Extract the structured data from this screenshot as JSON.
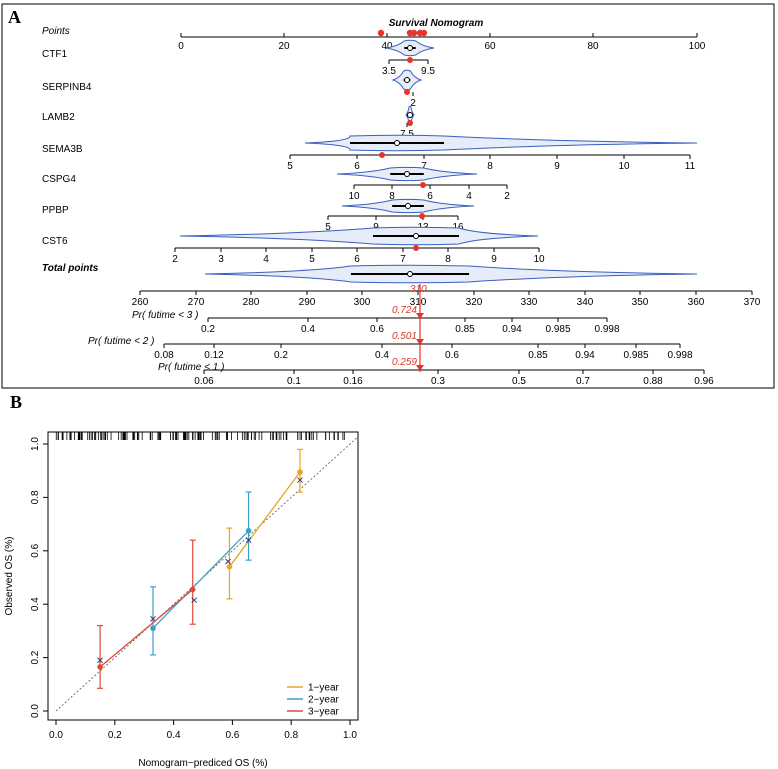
{
  "panels": {
    "a": {
      "letter": "A",
      "title": "Survival Nomogram",
      "rows": [
        {
          "label": "Points",
          "style": "italic",
          "ticks": [
            {
              "v": 0,
              "t": "0"
            },
            {
              "v": 20,
              "t": "20"
            },
            {
              "v": 40,
              "t": "40"
            },
            {
              "v": 60,
              "t": "60"
            },
            {
              "v": 80,
              "t": "80"
            },
            {
              "v": 100,
              "t": "100"
            }
          ]
        },
        {
          "label": "CTF1",
          "ticks": [
            {
              "v": 3.5,
              "t": "3.5"
            },
            {
              "v": 9.5,
              "t": "9.5"
            }
          ]
        },
        {
          "label": "SERPINB4",
          "ticks": [
            {
              "v": 2,
              "t": "2"
            }
          ]
        },
        {
          "label": "LAMB2",
          "ticks": [
            {
              "v": 7.5,
              "t": "7.5"
            }
          ]
        },
        {
          "label": "SEMA3B",
          "ticks": [
            {
              "v": 5,
              "t": "5"
            },
            {
              "v": 6,
              "t": "6"
            },
            {
              "v": 7,
              "t": "7"
            },
            {
              "v": 8,
              "t": "8"
            },
            {
              "v": 9,
              "t": "9"
            },
            {
              "v": 10,
              "t": "10"
            },
            {
              "v": 11,
              "t": "11"
            }
          ]
        },
        {
          "label": "CSPG4",
          "ticks": [
            {
              "v": 10,
              "t": "10"
            },
            {
              "v": 8,
              "t": "8"
            },
            {
              "v": 6,
              "t": "6"
            },
            {
              "v": 4,
              "t": "4"
            },
            {
              "v": 2,
              "t": "2"
            }
          ]
        },
        {
          "label": "PPBP",
          "ticks": [
            {
              "v": 5,
              "t": "5"
            },
            {
              "v": 9,
              "t": "9"
            },
            {
              "v": 13,
              "t": "13"
            },
            {
              "v": 16,
              "t": "16"
            }
          ]
        },
        {
          "label": "CST6",
          "ticks": [
            {
              "v": 2,
              "t": "2"
            },
            {
              "v": 3,
              "t": "3"
            },
            {
              "v": 4,
              "t": "4"
            },
            {
              "v": 5,
              "t": "5"
            },
            {
              "v": 6,
              "t": "6"
            },
            {
              "v": 7,
              "t": "7"
            },
            {
              "v": 8,
              "t": "8"
            },
            {
              "v": 9,
              "t": "9"
            },
            {
              "v": 10,
              "t": "10"
            }
          ]
        },
        {
          "label": "Total points",
          "style": "bold-italic",
          "ticks": [
            {
              "v": 260,
              "t": "260"
            },
            {
              "v": 270,
              "t": "270"
            },
            {
              "v": 280,
              "t": "280"
            },
            {
              "v": 290,
              "t": "290"
            },
            {
              "v": 300,
              "t": "300"
            },
            {
              "v": 310,
              "t": "310"
            },
            {
              "v": 320,
              "t": "320"
            },
            {
              "v": 330,
              "t": "330"
            },
            {
              "v": 340,
              "t": "340"
            },
            {
              "v": 350,
              "t": "350"
            },
            {
              "v": 360,
              "t": "360"
            },
            {
              "v": 370,
              "t": "370"
            }
          ]
        },
        {
          "label": "Pr( futime < 3 )",
          "style": "italic",
          "ticks": [
            {
              "v": 0.2,
              "t": "0.2"
            },
            {
              "v": 0.4,
              "t": "0.4"
            },
            {
              "v": 0.6,
              "t": "0.6"
            },
            {
              "v": 0.85,
              "t": "0.85"
            },
            {
              "v": 0.94,
              "t": "0.94"
            },
            {
              "v": 0.985,
              "t": "0.985"
            },
            {
              "v": 0.998,
              "t": "0.998"
            }
          ]
        },
        {
          "label": "Pr( futime < 2 )",
          "style": "italic",
          "ticks": [
            {
              "v": 0.08,
              "t": "0.08"
            },
            {
              "v": 0.12,
              "t": "0.12"
            },
            {
              "v": 0.2,
              "t": "0.2"
            },
            {
              "v": 0.4,
              "t": "0.4"
            },
            {
              "v": 0.6,
              "t": "0.6"
            },
            {
              "v": 0.85,
              "t": "0.85"
            },
            {
              "v": 0.94,
              "t": "0.94"
            },
            {
              "v": 0.985,
              "t": "0.985"
            },
            {
              "v": 0.998,
              "t": "0.998"
            }
          ]
        },
        {
          "label": "Pr( futime < 1 )",
          "style": "italic",
          "ticks": [
            {
              "v": 0.06,
              "t": "0.06"
            },
            {
              "v": 0.1,
              "t": "0.1"
            },
            {
              "v": 0.16,
              "t": "0.16"
            },
            {
              "v": 0.3,
              "t": "0.3"
            },
            {
              "v": 0.5,
              "t": "0.5"
            },
            {
              "v": 0.7,
              "t": "0.7"
            },
            {
              "v": 0.88,
              "t": "0.88"
            },
            {
              "v": 0.96,
              "t": "0.96"
            }
          ]
        }
      ],
      "total_points_marker": "310",
      "predicted": [
        {
          "row": "Pr( futime < 3 )",
          "value": "0.724"
        },
        {
          "row": "Pr( futime < 2 )",
          "value": "0.501"
        },
        {
          "row": "Pr( futime < 1 )",
          "value": "0.259"
        }
      ],
      "colors": {
        "marker": "#e8322b",
        "violin_stroke": "#3a5fbf",
        "violin_fill": "#e6ecf8",
        "pred_arrow": "#e8322b"
      }
    },
    "b": {
      "letter": "B",
      "xlabel": "Nomogram−prediced OS (%)",
      "ylabel": "Observed OS (%)",
      "xticks": [
        "0.0",
        "0.2",
        "0.4",
        "0.6",
        "0.8",
        "1.0"
      ],
      "yticks": [
        "0.0",
        "0.2",
        "0.4",
        "0.6",
        "0.8",
        "1.0"
      ],
      "legend": [
        {
          "name": "1−year",
          "color": "#e7a623"
        },
        {
          "name": "2−year",
          "color": "#3c9fc8"
        },
        {
          "name": "3−year",
          "color": "#e04a3a"
        }
      ]
    }
  },
  "chart_data": [
    {
      "type": "nomogram",
      "title": "Survival Nomogram",
      "variables": [
        "CTF1",
        "SERPINB4",
        "LAMB2",
        "SEMA3B",
        "CSPG4",
        "PPBP",
        "CST6"
      ],
      "points_range": [
        0,
        100
      ],
      "total_points_range": [
        260,
        370
      ],
      "total_points": 310,
      "predictions": {
        "3-year": 0.724,
        "2-year": 0.501,
        "1-year": 0.259
      }
    },
    {
      "type": "line",
      "title": "",
      "xlabel": "Nomogram−prediced OS (%)",
      "ylabel": "Observed OS (%)",
      "xlim": [
        0,
        1
      ],
      "ylim": [
        0,
        1
      ],
      "reference_line": "diagonal",
      "series": [
        {
          "name": "1−year",
          "color": "#e7a623",
          "points": [
            {
              "x": 0.59,
              "y": 0.54,
              "lo": 0.42,
              "hi": 0.685,
              "xc": 0.585,
              "yc": 0.56
            },
            {
              "x": 0.83,
              "y": 0.895,
              "lo": 0.82,
              "hi": 0.98,
              "xc": 0.83,
              "yc": 0.865
            }
          ]
        },
        {
          "name": "2−year",
          "color": "#3c9fc8",
          "points": [
            {
              "x": 0.33,
              "y": 0.31,
              "lo": 0.21,
              "hi": 0.465,
              "xc": 0.33,
              "yc": 0.345
            },
            {
              "x": 0.655,
              "y": 0.675,
              "lo": 0.565,
              "hi": 0.82,
              "xc": 0.655,
              "yc": 0.64
            }
          ]
        },
        {
          "name": "3−year",
          "color": "#e04a3a",
          "points": [
            {
              "x": 0.15,
              "y": 0.165,
              "lo": 0.085,
              "hi": 0.32,
              "xc": 0.15,
              "yc": 0.19
            },
            {
              "x": 0.465,
              "y": 0.455,
              "lo": 0.325,
              "hi": 0.64,
              "xc": 0.47,
              "yc": 0.415
            }
          ]
        }
      ]
    }
  ]
}
